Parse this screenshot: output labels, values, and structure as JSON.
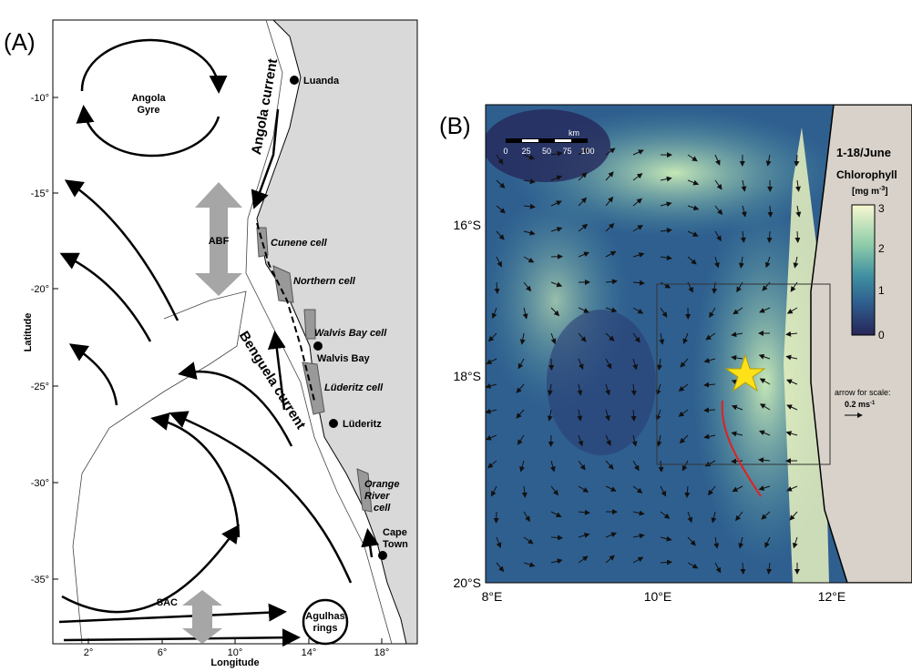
{
  "panel_a": {
    "label": "(A)",
    "y_axis_title": "Latitude",
    "x_axis_title": "Longitude",
    "lat_ticks": [
      "-10°",
      "-15°",
      "-20°",
      "-25°",
      "-30°",
      "-35°"
    ],
    "lon_ticks": [
      "2°",
      "6°",
      "10°",
      "14°",
      "18°"
    ],
    "features": {
      "angola_gyre": [
        "Angola",
        "Gyre"
      ],
      "angola_current": "Angola current",
      "abf": "ABF",
      "benguela_current": "Benguela current",
      "sac": "SAC",
      "agulhas_rings": [
        "Agulhas",
        "rings"
      ]
    },
    "places": {
      "luanda": "Luanda",
      "walvis_bay": "Walvis Bay",
      "luderitz": "Lüderitz",
      "cape_town": [
        "Cape",
        "Town"
      ]
    },
    "cells": {
      "cunene": "Cunene cell",
      "northern": "Northern cell",
      "walvis_bay": "Walvis Bay cell",
      "luderitz": "Lüderitz cell",
      "orange_river": [
        "Orange",
        "River",
        "cell"
      ]
    }
  },
  "panel_b": {
    "label": "(B)",
    "period": "1-18/June",
    "colorbar_title": "Chlorophyll",
    "colorbar_units": {
      "open": "[mg m",
      "exponent": "-3",
      "close": "]"
    },
    "colorbar_ticks": [
      "3",
      "2",
      "1",
      "0"
    ],
    "lat_ticks": [
      "16°S",
      "18°S",
      "20°S"
    ],
    "lon_ticks": [
      "8°E",
      "10°E",
      "12°E"
    ],
    "scale_bar": {
      "unit": "km",
      "ticks": [
        "0",
        "25",
        "50",
        "75",
        "100"
      ]
    },
    "arrow_scale": {
      "caption": "arrow for scale:",
      "value": "0.2 ms",
      "exponent": "-1"
    }
  }
}
